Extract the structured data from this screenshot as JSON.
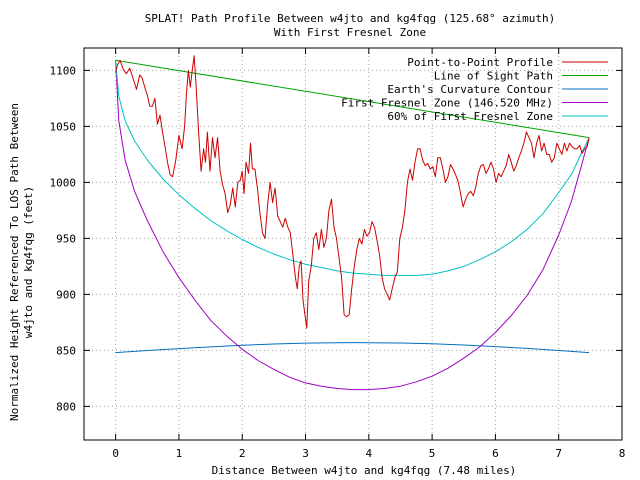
{
  "chart_data": {
    "type": "line",
    "title": "SPLAT! Path Profile Between w4jto and kg4fqg (125.68° azimuth)",
    "subtitle": "With First Fresnel Zone",
    "xlabel": "Distance Between w4jto and kg4fqg (7.48 miles)",
    "ylabel": "Normalized Height Referenced To LOS Path Between",
    "ylabel2": "w4jto and kg4fqg (feet)",
    "xlim": [
      -0.5,
      8
    ],
    "ylim": [
      770,
      1120
    ],
    "xticks": [
      "0",
      "1",
      "2",
      "3",
      "4",
      "5",
      "6",
      "7",
      "8"
    ],
    "yticks": [
      "800",
      "850",
      "900",
      "950",
      "1000",
      "1050",
      "1100"
    ],
    "grid": true,
    "legend_position": "top-right",
    "series": [
      {
        "name": "Point-to-Point Profile",
        "color": "#cc0000",
        "points": [
          [
            0,
            1098
          ],
          [
            0.03,
            1105
          ],
          [
            0.07,
            1109
          ],
          [
            0.12,
            1101
          ],
          [
            0.17,
            1097
          ],
          [
            0.22,
            1102
          ],
          [
            0.28,
            1092
          ],
          [
            0.33,
            1083
          ],
          [
            0.38,
            1096
          ],
          [
            0.42,
            1093
          ],
          [
            0.47,
            1083
          ],
          [
            0.5,
            1078
          ],
          [
            0.54,
            1068
          ],
          [
            0.58,
            1068
          ],
          [
            0.62,
            1075
          ],
          [
            0.66,
            1052
          ],
          [
            0.7,
            1060
          ],
          [
            0.74,
            1045
          ],
          [
            0.78,
            1032
          ],
          [
            0.82,
            1018
          ],
          [
            0.86,
            1007
          ],
          [
            0.9,
            1005
          ],
          [
            0.95,
            1020
          ],
          [
            1.0,
            1042
          ],
          [
            1.05,
            1030
          ],
          [
            1.09,
            1050
          ],
          [
            1.12,
            1080
          ],
          [
            1.15,
            1100
          ],
          [
            1.18,
            1085
          ],
          [
            1.21,
            1100
          ],
          [
            1.24,
            1113
          ],
          [
            1.27,
            1088
          ],
          [
            1.31,
            1045
          ],
          [
            1.35,
            1010
          ],
          [
            1.39,
            1030
          ],
          [
            1.42,
            1018
          ],
          [
            1.45,
            1045
          ],
          [
            1.49,
            1010
          ],
          [
            1.53,
            1040
          ],
          [
            1.57,
            1022
          ],
          [
            1.61,
            1040
          ],
          [
            1.65,
            1010
          ],
          [
            1.69,
            998
          ],
          [
            1.73,
            990
          ],
          [
            1.77,
            973
          ],
          [
            1.81,
            980
          ],
          [
            1.85,
            995
          ],
          [
            1.89,
            978
          ],
          [
            1.93,
            1000
          ],
          [
            1.97,
            1002
          ],
          [
            2.0,
            1010
          ],
          [
            2.03,
            990
          ],
          [
            2.06,
            1018
          ],
          [
            2.1,
            1008
          ],
          [
            2.13,
            1035
          ],
          [
            2.16,
            1012
          ],
          [
            2.2,
            1012
          ],
          [
            2.24,
            995
          ],
          [
            2.28,
            972
          ],
          [
            2.32,
            955
          ],
          [
            2.36,
            950
          ],
          [
            2.4,
            980
          ],
          [
            2.44,
            1000
          ],
          [
            2.48,
            982
          ],
          [
            2.52,
            995
          ],
          [
            2.56,
            970
          ],
          [
            2.6,
            965
          ],
          [
            2.64,
            960
          ],
          [
            2.68,
            968
          ],
          [
            2.72,
            960
          ],
          [
            2.76,
            955
          ],
          [
            2.8,
            935
          ],
          [
            2.84,
            915
          ],
          [
            2.87,
            905
          ],
          [
            2.9,
            925
          ],
          [
            2.93,
            930
          ],
          [
            2.96,
            895
          ],
          [
            2.99,
            882
          ],
          [
            3.02,
            870
          ],
          [
            3.05,
            912
          ],
          [
            3.09,
            925
          ],
          [
            3.13,
            950
          ],
          [
            3.17,
            955
          ],
          [
            3.21,
            940
          ],
          [
            3.25,
            958
          ],
          [
            3.29,
            942
          ],
          [
            3.33,
            950
          ],
          [
            3.37,
            975
          ],
          [
            3.41,
            985
          ],
          [
            3.45,
            960
          ],
          [
            3.49,
            950
          ],
          [
            3.53,
            932
          ],
          [
            3.57,
            915
          ],
          [
            3.61,
            882
          ],
          [
            3.65,
            880
          ],
          [
            3.69,
            882
          ],
          [
            3.73,
            905
          ],
          [
            3.77,
            925
          ],
          [
            3.81,
            940
          ],
          [
            3.85,
            950
          ],
          [
            3.89,
            945
          ],
          [
            3.93,
            958
          ],
          [
            3.97,
            952
          ],
          [
            4.01,
            955
          ],
          [
            4.05,
            965
          ],
          [
            4.09,
            960
          ],
          [
            4.13,
            948
          ],
          [
            4.17,
            935
          ],
          [
            4.21,
            915
          ],
          [
            4.25,
            905
          ],
          [
            4.29,
            900
          ],
          [
            4.33,
            895
          ],
          [
            4.37,
            905
          ],
          [
            4.41,
            915
          ],
          [
            4.45,
            920
          ],
          [
            4.49,
            950
          ],
          [
            4.53,
            960
          ],
          [
            4.57,
            975
          ],
          [
            4.61,
            1000
          ],
          [
            4.65,
            1012
          ],
          [
            4.69,
            1002
          ],
          [
            4.73,
            1018
          ],
          [
            4.77,
            1030
          ],
          [
            4.81,
            1030
          ],
          [
            4.85,
            1020
          ],
          [
            4.89,
            1015
          ],
          [
            4.93,
            1017
          ],
          [
            4.97,
            1012
          ],
          [
            5.01,
            1014
          ],
          [
            5.05,
            1005
          ],
          [
            5.09,
            1022
          ],
          [
            5.13,
            1022
          ],
          [
            5.17,
            1012
          ],
          [
            5.21,
            1000
          ],
          [
            5.25,
            1005
          ],
          [
            5.29,
            1016
          ],
          [
            5.33,
            1012
          ],
          [
            5.37,
            1007
          ],
          [
            5.41,
            1001
          ],
          [
            5.45,
            990
          ],
          [
            5.49,
            978
          ],
          [
            5.53,
            985
          ],
          [
            5.57,
            990
          ],
          [
            5.61,
            992
          ],
          [
            5.65,
            988
          ],
          [
            5.69,
            996
          ],
          [
            5.73,
            1008
          ],
          [
            5.77,
            1015
          ],
          [
            5.81,
            1016
          ],
          [
            5.85,
            1008
          ],
          [
            5.89,
            1012
          ],
          [
            5.93,
            1018
          ],
          [
            5.97,
            1012
          ],
          [
            6.01,
            1000
          ],
          [
            6.05,
            1008
          ],
          [
            6.09,
            1005
          ],
          [
            6.13,
            1010
          ],
          [
            6.17,
            1015
          ],
          [
            6.21,
            1025
          ],
          [
            6.25,
            1018
          ],
          [
            6.29,
            1010
          ],
          [
            6.33,
            1015
          ],
          [
            6.37,
            1022
          ],
          [
            6.41,
            1028
          ],
          [
            6.45,
            1035
          ],
          [
            6.49,
            1045
          ],
          [
            6.53,
            1040
          ],
          [
            6.57,
            1035
          ],
          [
            6.61,
            1022
          ],
          [
            6.65,
            1035
          ],
          [
            6.69,
            1042
          ],
          [
            6.73,
            1028
          ],
          [
            6.77,
            1035
          ],
          [
            6.81,
            1025
          ],
          [
            6.85,
            1025
          ],
          [
            6.89,
            1018
          ],
          [
            6.93,
            1022
          ],
          [
            6.97,
            1035
          ],
          [
            7.01,
            1030
          ],
          [
            7.05,
            1025
          ],
          [
            7.09,
            1035
          ],
          [
            7.13,
            1028
          ],
          [
            7.17,
            1035
          ],
          [
            7.21,
            1032
          ],
          [
            7.25,
            1030
          ],
          [
            7.29,
            1030
          ],
          [
            7.33,
            1033
          ],
          [
            7.37,
            1026
          ],
          [
            7.41,
            1030
          ],
          [
            7.45,
            1032
          ],
          [
            7.48,
            1040
          ]
        ]
      },
      {
        "name": "Line of Sight Path",
        "color": "#00a000",
        "points": [
          [
            0,
            1109
          ],
          [
            7.48,
            1040
          ]
        ]
      },
      {
        "name": "Earth's Curvature Contour",
        "color": "#0070c0",
        "points": [
          [
            0,
            848
          ],
          [
            0.5,
            849.9
          ],
          [
            1,
            851.6
          ],
          [
            1.5,
            853.1
          ],
          [
            2,
            854.6
          ],
          [
            2.5,
            855.7
          ],
          [
            3,
            856.5
          ],
          [
            3.5,
            856.9
          ],
          [
            3.74,
            857
          ],
          [
            4,
            856.9
          ],
          [
            4.5,
            856.6
          ],
          [
            5,
            855.9
          ],
          [
            5.5,
            854.8
          ],
          [
            6,
            853.4
          ],
          [
            6.5,
            851.8
          ],
          [
            7,
            849.9
          ],
          [
            7.48,
            848
          ]
        ]
      },
      {
        "name": "First Fresnel Zone (146.520 MHz)",
        "color": "#a000c0",
        "points": [
          [
            0,
            1109
          ],
          [
            0.05,
            1055
          ],
          [
            0.15,
            1020
          ],
          [
            0.3,
            992
          ],
          [
            0.5,
            966
          ],
          [
            0.75,
            938
          ],
          [
            1,
            915
          ],
          [
            1.25,
            895
          ],
          [
            1.5,
            877
          ],
          [
            1.75,
            863
          ],
          [
            2,
            851
          ],
          [
            2.25,
            841
          ],
          [
            2.5,
            833
          ],
          [
            2.75,
            826
          ],
          [
            3,
            821
          ],
          [
            3.25,
            818
          ],
          [
            3.5,
            816
          ],
          [
            3.75,
            815
          ],
          [
            4,
            815
          ],
          [
            4.25,
            816
          ],
          [
            4.5,
            818
          ],
          [
            4.75,
            822
          ],
          [
            5,
            827
          ],
          [
            5.25,
            834
          ],
          [
            5.5,
            843
          ],
          [
            5.75,
            853
          ],
          [
            6,
            866
          ],
          [
            6.25,
            881
          ],
          [
            6.5,
            899
          ],
          [
            6.75,
            922
          ],
          [
            7,
            953
          ],
          [
            7.2,
            983
          ],
          [
            7.35,
            1013
          ],
          [
            7.48,
            1040
          ]
        ]
      },
      {
        "name": "60% of First Fresnel Zone",
        "color": "#00c0c0",
        "points": [
          [
            0,
            1109
          ],
          [
            0.05,
            1077
          ],
          [
            0.15,
            1055
          ],
          [
            0.3,
            1037
          ],
          [
            0.5,
            1020
          ],
          [
            0.75,
            1003
          ],
          [
            1,
            989
          ],
          [
            1.25,
            977
          ],
          [
            1.5,
            966
          ],
          [
            1.75,
            957
          ],
          [
            2,
            949
          ],
          [
            2.25,
            942
          ],
          [
            2.5,
            936
          ],
          [
            2.75,
            931
          ],
          [
            3,
            927
          ],
          [
            3.25,
            924
          ],
          [
            3.5,
            921
          ],
          [
            3.75,
            919
          ],
          [
            4,
            918
          ],
          [
            4.25,
            917
          ],
          [
            4.5,
            917
          ],
          [
            4.75,
            917
          ],
          [
            5,
            918
          ],
          [
            5.25,
            921
          ],
          [
            5.5,
            925
          ],
          [
            5.75,
            931
          ],
          [
            6,
            938
          ],
          [
            6.25,
            947
          ],
          [
            6.5,
            958
          ],
          [
            6.75,
            972
          ],
          [
            7,
            991
          ],
          [
            7.2,
            1007
          ],
          [
            7.35,
            1025
          ],
          [
            7.48,
            1040
          ]
        ]
      }
    ]
  }
}
